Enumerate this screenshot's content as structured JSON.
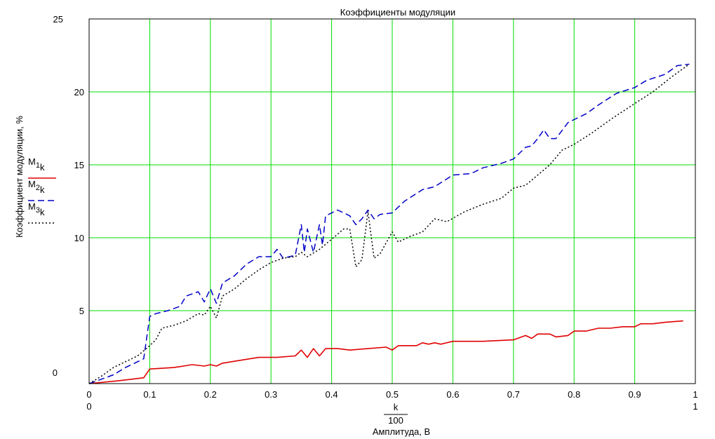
{
  "chart_data": {
    "type": "line",
    "title": "Коэффициенты модуляции",
    "xlabel": "Амплитуда, В",
    "ylabel": "Коэффициент модуляции, %",
    "x_expr_top": "k",
    "x_expr_bottom": "100",
    "xlim": [
      0,
      1
    ],
    "ylim": [
      0,
      25
    ],
    "x_ticks": [
      "0",
      "0.1",
      "0.2",
      "0.3",
      "0.4",
      "0.5",
      "0.6",
      "0.7",
      "0.8",
      "0.9",
      "1"
    ],
    "y_ticks": [
      "0",
      "5",
      "10",
      "15",
      "20",
      "25"
    ],
    "x_range_min_label": "0",
    "x_range_max_label": "1",
    "y_range_min_label": "0",
    "y_range_max_label": "25",
    "grid": true,
    "legend_position": "left",
    "series": [
      {
        "name": "M1k",
        "main": "M",
        "sub": "1",
        "subsub": "k",
        "color": "#e00000",
        "style": "solid",
        "points": [
          [
            0,
            0
          ],
          [
            0.05,
            0.2
          ],
          [
            0.09,
            0.4
          ],
          [
            0.1,
            1.0
          ],
          [
            0.14,
            1.1
          ],
          [
            0.17,
            1.3
          ],
          [
            0.19,
            1.2
          ],
          [
            0.2,
            1.3
          ],
          [
            0.21,
            1.2
          ],
          [
            0.22,
            1.4
          ],
          [
            0.25,
            1.6
          ],
          [
            0.28,
            1.8
          ],
          [
            0.31,
            1.8
          ],
          [
            0.34,
            1.9
          ],
          [
            0.35,
            2.3
          ],
          [
            0.36,
            1.8
          ],
          [
            0.37,
            2.4
          ],
          [
            0.38,
            1.9
          ],
          [
            0.39,
            2.4
          ],
          [
            0.41,
            2.4
          ],
          [
            0.43,
            2.3
          ],
          [
            0.46,
            2.4
          ],
          [
            0.49,
            2.5
          ],
          [
            0.5,
            2.3
          ],
          [
            0.51,
            2.6
          ],
          [
            0.54,
            2.6
          ],
          [
            0.55,
            2.8
          ],
          [
            0.56,
            2.7
          ],
          [
            0.57,
            2.8
          ],
          [
            0.58,
            2.7
          ],
          [
            0.6,
            2.9
          ],
          [
            0.65,
            2.9
          ],
          [
            0.7,
            3.0
          ],
          [
            0.72,
            3.3
          ],
          [
            0.73,
            3.1
          ],
          [
            0.74,
            3.4
          ],
          [
            0.76,
            3.4
          ],
          [
            0.77,
            3.2
          ],
          [
            0.79,
            3.3
          ],
          [
            0.8,
            3.6
          ],
          [
            0.82,
            3.6
          ],
          [
            0.84,
            3.8
          ],
          [
            0.86,
            3.8
          ],
          [
            0.88,
            3.9
          ],
          [
            0.9,
            3.9
          ],
          [
            0.91,
            4.1
          ],
          [
            0.93,
            4.1
          ],
          [
            0.95,
            4.2
          ],
          [
            0.98,
            4.3
          ]
        ]
      },
      {
        "name": "M2k",
        "main": "M",
        "sub": "2",
        "subsub": "k",
        "color": "#0000c8",
        "style": "dashed",
        "points": [
          [
            0,
            0
          ],
          [
            0.02,
            0.3
          ],
          [
            0.04,
            0.6
          ],
          [
            0.06,
            1.1
          ],
          [
            0.08,
            1.5
          ],
          [
            0.09,
            1.7
          ],
          [
            0.1,
            4.6
          ],
          [
            0.11,
            4.8
          ],
          [
            0.13,
            5.0
          ],
          [
            0.15,
            5.3
          ],
          [
            0.16,
            6.0
          ],
          [
            0.18,
            6.3
          ],
          [
            0.19,
            5.6
          ],
          [
            0.2,
            6.5
          ],
          [
            0.21,
            5.5
          ],
          [
            0.22,
            6.9
          ],
          [
            0.24,
            7.4
          ],
          [
            0.26,
            8.2
          ],
          [
            0.28,
            8.7
          ],
          [
            0.3,
            8.7
          ],
          [
            0.31,
            9.2
          ],
          [
            0.32,
            8.6
          ],
          [
            0.34,
            8.8
          ],
          [
            0.35,
            10.9
          ],
          [
            0.355,
            9.0
          ],
          [
            0.36,
            10.6
          ],
          [
            0.37,
            9.0
          ],
          [
            0.38,
            10.9
          ],
          [
            0.385,
            9.5
          ],
          [
            0.39,
            11.5
          ],
          [
            0.41,
            11.9
          ],
          [
            0.42,
            11.7
          ],
          [
            0.43,
            11.5
          ],
          [
            0.44,
            10.9
          ],
          [
            0.45,
            11.3
          ],
          [
            0.46,
            11.9
          ],
          [
            0.47,
            11.3
          ],
          [
            0.48,
            11.6
          ],
          [
            0.5,
            11.7
          ],
          [
            0.52,
            12.5
          ],
          [
            0.55,
            13.3
          ],
          [
            0.57,
            13.5
          ],
          [
            0.6,
            14.3
          ],
          [
            0.63,
            14.4
          ],
          [
            0.65,
            14.8
          ],
          [
            0.68,
            15.1
          ],
          [
            0.7,
            15.4
          ],
          [
            0.72,
            16.2
          ],
          [
            0.73,
            16.3
          ],
          [
            0.74,
            16.8
          ],
          [
            0.75,
            17.4
          ],
          [
            0.76,
            16.8
          ],
          [
            0.77,
            16.8
          ],
          [
            0.79,
            17.9
          ],
          [
            0.8,
            18.1
          ],
          [
            0.82,
            18.5
          ],
          [
            0.84,
            19.1
          ],
          [
            0.87,
            19.9
          ],
          [
            0.9,
            20.3
          ],
          [
            0.92,
            20.8
          ],
          [
            0.95,
            21.2
          ],
          [
            0.97,
            21.8
          ],
          [
            0.99,
            21.9
          ]
        ]
      },
      {
        "name": "M3k",
        "main": "M",
        "sub": "3",
        "subsub": "k",
        "color": "#000000",
        "style": "dotted",
        "points": [
          [
            0,
            0
          ],
          [
            0.02,
            0.5
          ],
          [
            0.04,
            1.1
          ],
          [
            0.06,
            1.5
          ],
          [
            0.08,
            1.9
          ],
          [
            0.1,
            2.6
          ],
          [
            0.11,
            3.0
          ],
          [
            0.12,
            3.8
          ],
          [
            0.14,
            4.0
          ],
          [
            0.16,
            4.3
          ],
          [
            0.18,
            4.8
          ],
          [
            0.19,
            4.7
          ],
          [
            0.2,
            5.3
          ],
          [
            0.21,
            4.5
          ],
          [
            0.22,
            6.0
          ],
          [
            0.24,
            6.5
          ],
          [
            0.26,
            7.2
          ],
          [
            0.28,
            7.8
          ],
          [
            0.3,
            8.3
          ],
          [
            0.32,
            8.6
          ],
          [
            0.34,
            8.7
          ],
          [
            0.35,
            9.0
          ],
          [
            0.36,
            8.7
          ],
          [
            0.38,
            9.2
          ],
          [
            0.4,
            9.9
          ],
          [
            0.42,
            10.6
          ],
          [
            0.43,
            10.6
          ],
          [
            0.44,
            8.0
          ],
          [
            0.45,
            8.5
          ],
          [
            0.46,
            11.8
          ],
          [
            0.47,
            8.6
          ],
          [
            0.48,
            8.9
          ],
          [
            0.5,
            10.4
          ],
          [
            0.51,
            9.7
          ],
          [
            0.53,
            10.1
          ],
          [
            0.55,
            10.4
          ],
          [
            0.57,
            11.3
          ],
          [
            0.59,
            11.1
          ],
          [
            0.62,
            11.8
          ],
          [
            0.65,
            12.3
          ],
          [
            0.68,
            12.7
          ],
          [
            0.7,
            13.4
          ],
          [
            0.72,
            13.6
          ],
          [
            0.74,
            14.3
          ],
          [
            0.76,
            15.0
          ],
          [
            0.78,
            16.0
          ],
          [
            0.8,
            16.4
          ],
          [
            0.83,
            17.2
          ],
          [
            0.86,
            18.1
          ],
          [
            0.9,
            19.2
          ],
          [
            0.93,
            20.0
          ],
          [
            0.96,
            21.0
          ],
          [
            0.99,
            21.9
          ]
        ]
      }
    ]
  }
}
